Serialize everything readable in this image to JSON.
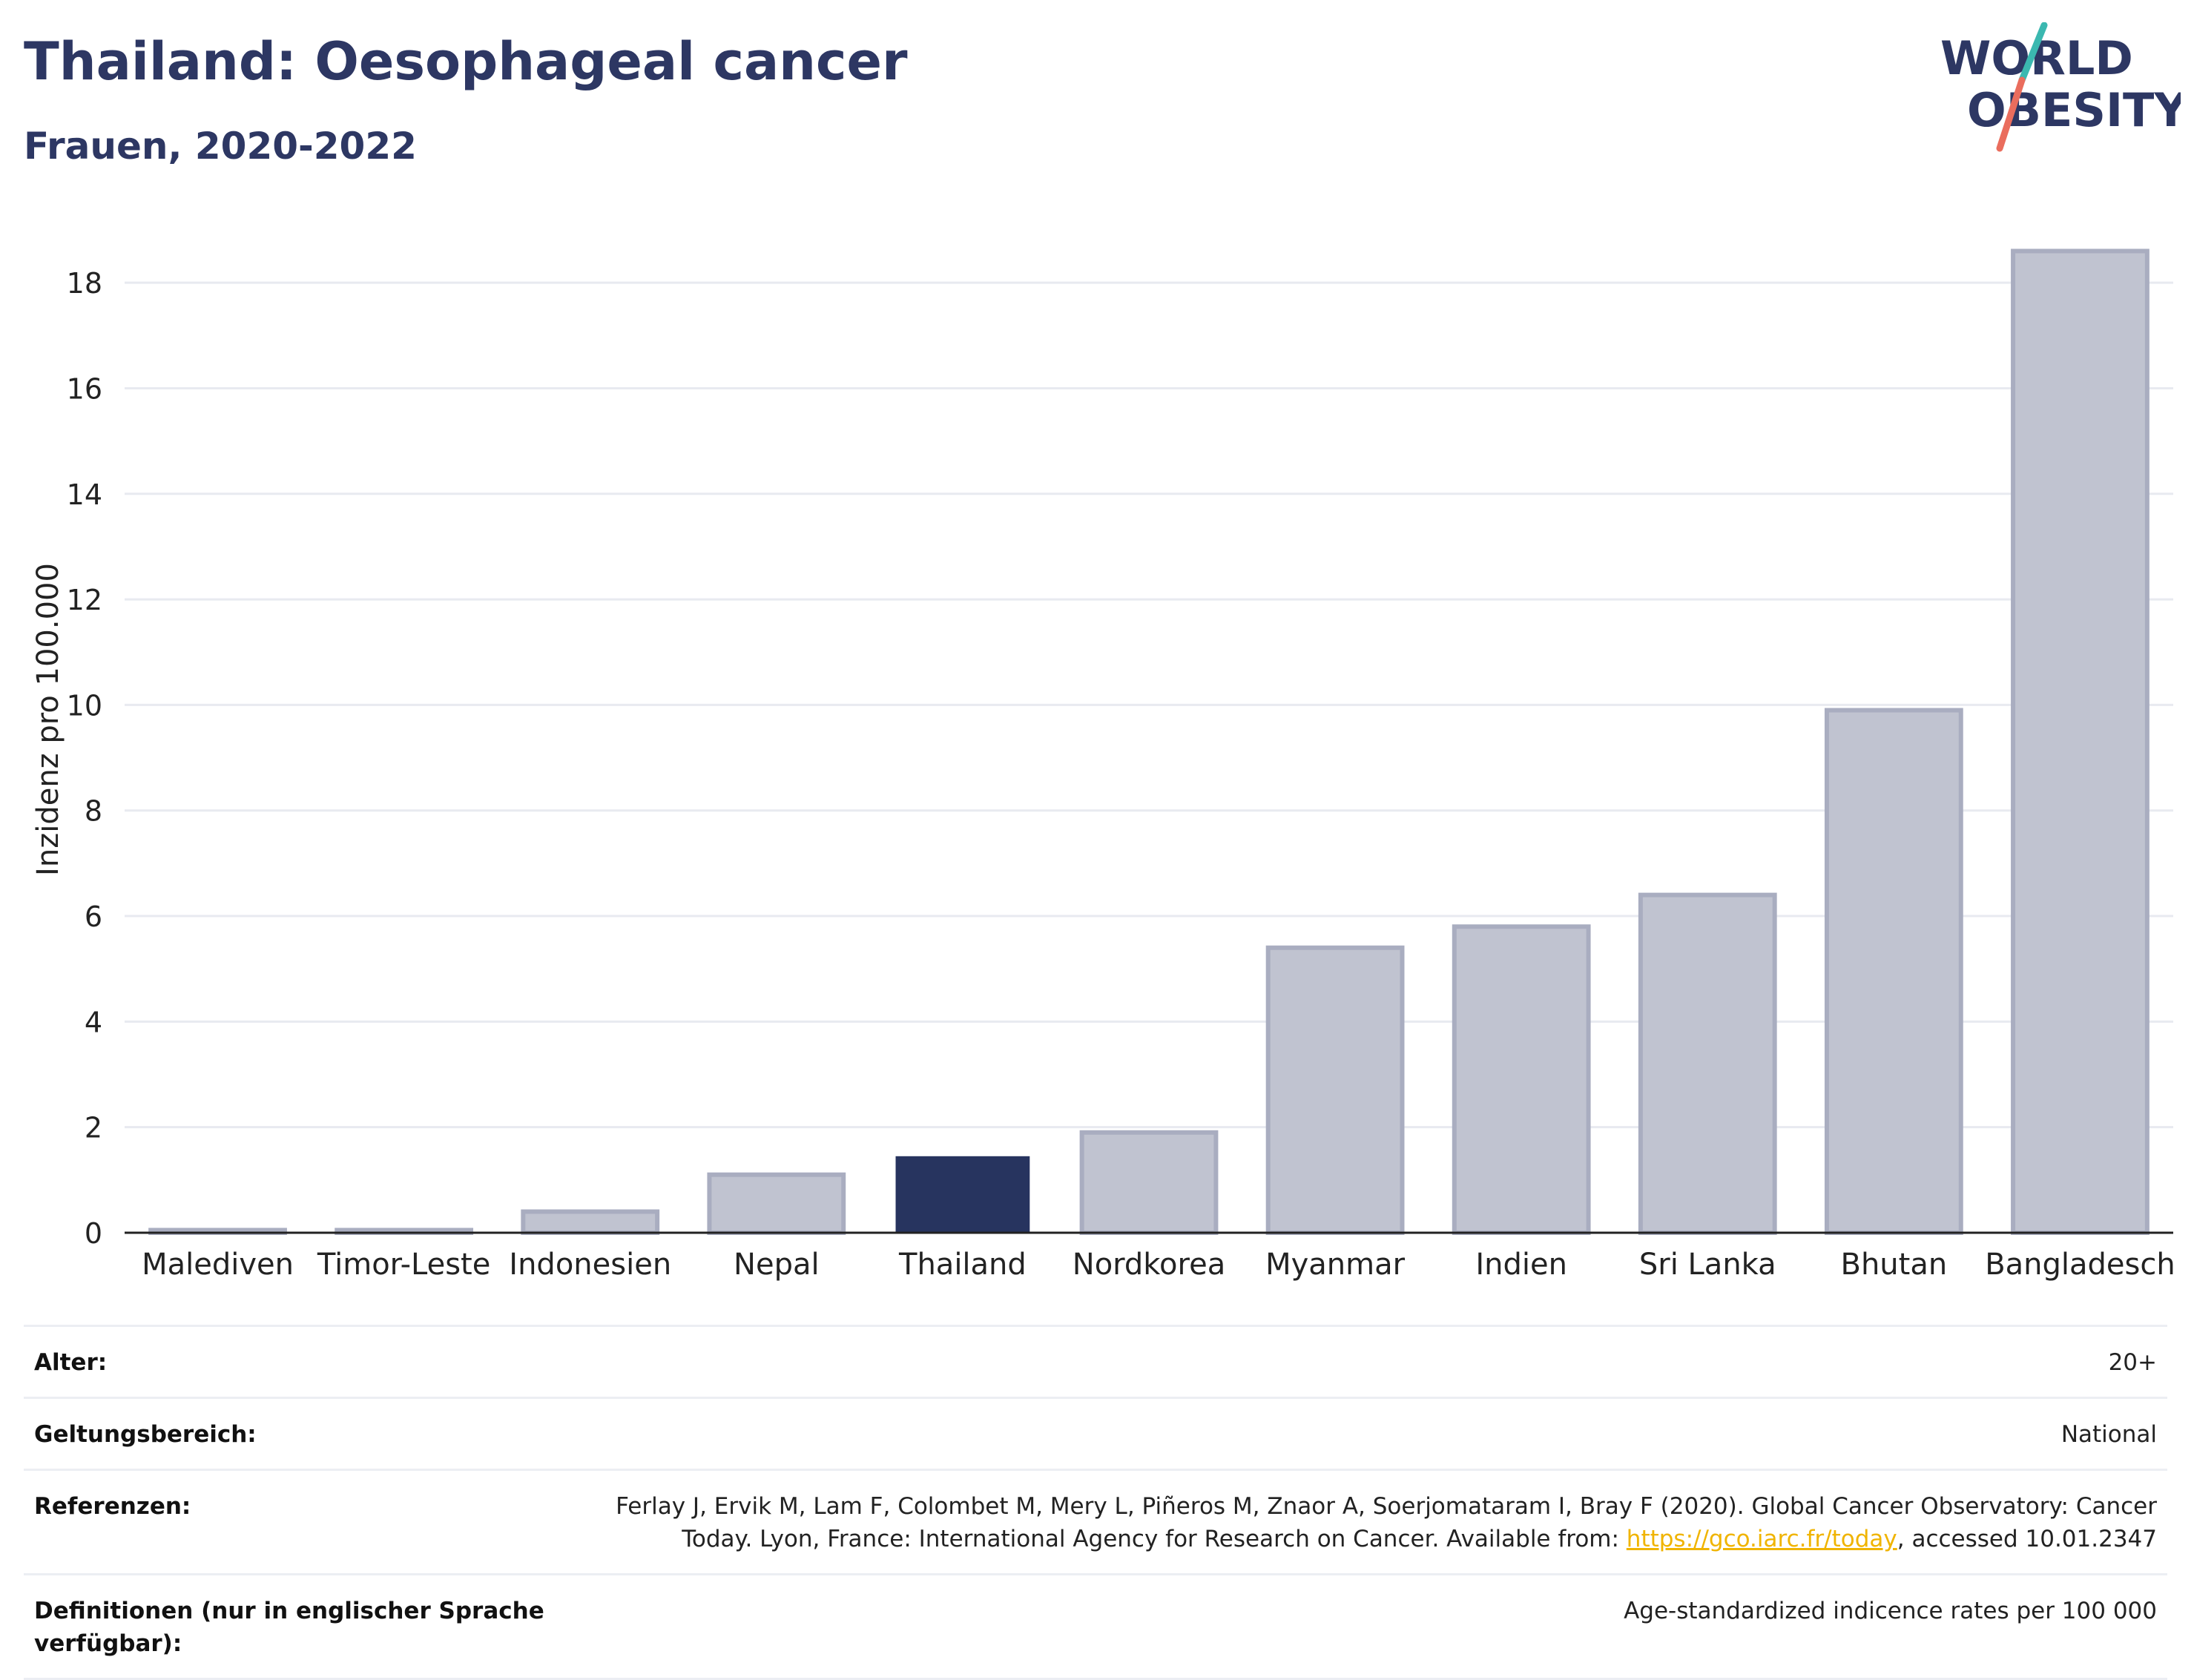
{
  "header": {
    "title": "Thailand: Oesophageal cancer",
    "subtitle": "Frauen, 2020-2022"
  },
  "logo": {
    "line1": "WORLD",
    "line2": "OBESITY",
    "icon": "world-obesity-logo"
  },
  "colors": {
    "highlight": "#27345f",
    "other": "#c0c3d0",
    "other_stroke": "#a9adc0",
    "axis": "#222222",
    "grid": "#e8eaf0",
    "link": "#f0b400"
  },
  "chart_data": {
    "type": "bar",
    "ylabel": "Inzidenz pro 100.000",
    "xlabel": "",
    "ylim": [
      0,
      19
    ],
    "yticks": [
      0,
      2,
      4,
      6,
      8,
      10,
      12,
      14,
      16,
      18
    ],
    "grid": true,
    "categories": [
      "Malediven",
      "Timor-Leste",
      "Indonesien",
      "Nepal",
      "Thailand",
      "Nordkorea",
      "Myanmar",
      "Indien",
      "Sri Lanka",
      "Bhutan",
      "Bangladesch"
    ],
    "values": [
      0.05,
      0.05,
      0.4,
      1.1,
      1.45,
      1.9,
      5.4,
      5.8,
      6.4,
      9.9,
      18.6
    ],
    "highlight": "Thailand"
  },
  "meta": [
    {
      "label": "Alter:",
      "value": "20+"
    },
    {
      "label": "Geltungsbereich:",
      "value": "National"
    },
    {
      "label": "Referenzen:",
      "value_before": "Ferlay J, Ervik M, Lam F, Colombet M, Mery L, Piñeros M, Znaor A, Soerjomataram I, Bray F (2020). Global Cancer Observatory: Cancer Today. Lyon, France: International Agency for Research on Cancer. Available from: ",
      "link": "https://gco.iarc.fr/today",
      "value_after": ", accessed 10.01.2347"
    },
    {
      "label": "Definitionen (nur in englischer Sprache verfügbar):",
      "value": "Age-standardized indicence rates per 100 000"
    }
  ]
}
